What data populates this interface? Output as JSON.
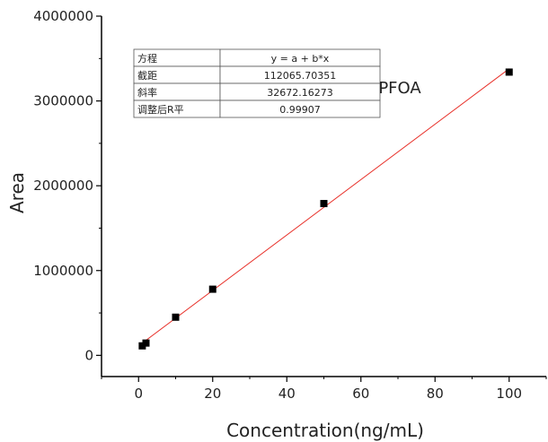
{
  "chart_data": {
    "type": "scatter",
    "xlabel": "Concentration(ng/mL)",
    "ylabel": "Area",
    "xlim": [
      -10,
      110
    ],
    "ylim": [
      -250000,
      4000000
    ],
    "x_ticks": [
      0,
      20,
      40,
      60,
      80,
      100
    ],
    "y_ticks": [
      0,
      1000000,
      2000000,
      3000000,
      4000000
    ],
    "x_tick_labels": [
      "0",
      "20",
      "40",
      "60",
      "80",
      "100"
    ],
    "y_tick_labels": [
      "0",
      "1000000",
      "2000000",
      "3000000",
      "4000000"
    ],
    "grid": false,
    "series": [
      {
        "marker": "square",
        "color": "#000000",
        "points": [
          {
            "x": 1,
            "y": 112000
          },
          {
            "x": 2,
            "y": 145000
          },
          {
            "x": 10,
            "y": 450000
          },
          {
            "x": 20,
            "y": 780000
          },
          {
            "x": 50,
            "y": 1790000
          },
          {
            "x": 100,
            "y": 3340000
          }
        ]
      }
    ],
    "fit_line": {
      "color": "#e8322b",
      "intercept": 112065.70351,
      "slope": 32672.16273,
      "x_range": [
        1,
        100
      ]
    },
    "annotation": "PFOA",
    "stats_table": [
      [
        "方程",
        "y = a + b*x"
      ],
      [
        "截距",
        "112065.70351"
      ],
      [
        "斜率",
        "32672.16273"
      ],
      [
        "调整后R平",
        "0.99907"
      ]
    ]
  }
}
